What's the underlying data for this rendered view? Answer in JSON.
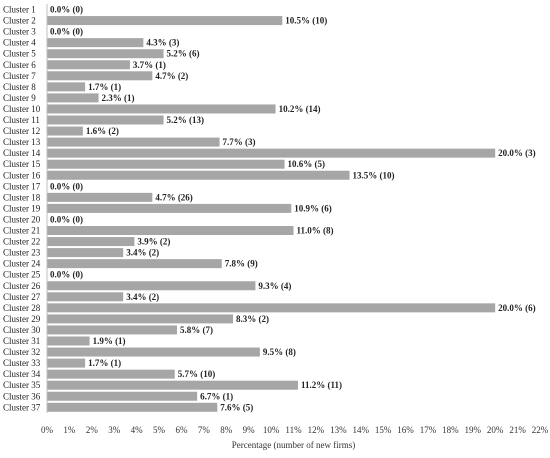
{
  "chart_data": {
    "type": "bar",
    "orientation": "horizontal",
    "categories": [
      "Cluster 1",
      "Cluster 2",
      "Cluster 3",
      "Cluster 4",
      "Cluster 5",
      "Cluster 6",
      "Cluster 7",
      "Cluster 8",
      "Cluster 9",
      "Cluster 10",
      "Cluster 11",
      "Cluster 12",
      "Cluster 13",
      "Cluster 14",
      "Cluster 15",
      "Cluster 16",
      "Cluster 17",
      "Cluster 18",
      "Cluster 19",
      "Cluster 20",
      "Cluster 21",
      "Cluster 22",
      "Cluster 23",
      "Cluster 24",
      "Cluster 25",
      "Cluster 26",
      "Cluster 27",
      "Cluster 28",
      "Cluster 29",
      "Cluster 30",
      "Cluster 31",
      "Cluster 32",
      "Cluster 33",
      "Cluster 34",
      "Cluster 35",
      "Cluster 36",
      "Cluster 37"
    ],
    "values": [
      0.0,
      10.5,
      0.0,
      4.3,
      5.2,
      3.7,
      4.7,
      1.7,
      2.3,
      10.2,
      5.2,
      1.6,
      7.7,
      20.0,
      10.6,
      13.5,
      0.0,
      4.7,
      10.9,
      0.0,
      11.0,
      3.9,
      3.4,
      7.8,
      0.0,
      9.3,
      3.4,
      20.0,
      8.3,
      5.8,
      1.9,
      9.5,
      1.7,
      5.7,
      11.2,
      6.7,
      7.6
    ],
    "data_labels": [
      "0.0% (0)",
      "10.5% (10)",
      "0.0% (0)",
      "4.3% (3)",
      "5.2% (6)",
      "3.7% (1)",
      "4.7% (2)",
      "1.7% (1)",
      "2.3% (1)",
      "10.2% (14)",
      "5.2% (13)",
      "1.6% (2)",
      "7.7% (3)",
      "20.0% (3)",
      "10.6% (5)",
      "13.5% (10)",
      "0.0% (0)",
      "4.7% (26)",
      "10.9% (6)",
      "0.0% (0)",
      "11.0% (8)",
      "3.9% (2)",
      "3.4% (2)",
      "7.8% (9)",
      "0.0% (0)",
      "9.3% (4)",
      "3.4% (2)",
      "20.0% (6)",
      "8.3% (2)",
      "5.8% (7)",
      "1.9% (1)",
      "9.5% (8)",
      "1.7% (1)",
      "5.7% (10)",
      "11.2% (11)",
      "6.7% (1)",
      "7.6% (5)"
    ],
    "xticks": [
      "0%",
      "1%",
      "2%",
      "3%",
      "4%",
      "5%",
      "6%",
      "7%",
      "8%",
      "9%",
      "10%",
      "11%",
      "12%",
      "13%",
      "14%",
      "15%",
      "16%",
      "17%",
      "18%",
      "19%",
      "20%",
      "21%",
      "22%"
    ],
    "xlim": [
      0,
      22
    ],
    "xlabel": "Percentage (number of new firms)",
    "ylabel": "",
    "title": "",
    "grid": false,
    "bar_color": "#a6a6a6"
  }
}
